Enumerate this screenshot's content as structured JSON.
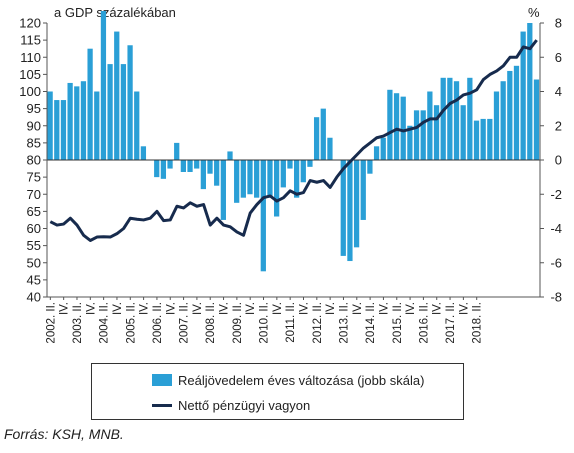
{
  "chart_data": {
    "type": "bar+line",
    "title": "",
    "left_axis_label": "a GDP százalékában",
    "right_axis_label": "%",
    "left_ylim": [
      40,
      120
    ],
    "right_ylim": [
      -8,
      8
    ],
    "left_ticks": [
      "40",
      "45",
      "50",
      "55",
      "60",
      "65",
      "70",
      "75",
      "80",
      "85",
      "90",
      "95",
      "100",
      "105",
      "110",
      "115",
      "120"
    ],
    "right_ticks": [
      "-8",
      "-6",
      "-4",
      "-2",
      "0",
      "2",
      "4",
      "6",
      "8"
    ],
    "x_tick_labels": [
      "2002. II.",
      "IV.",
      "2003. II.",
      "IV.",
      "2004. II.",
      "IV.",
      "2005. II.",
      "IV.",
      "2006. II.",
      "IV.",
      "2007. II.",
      "IV.",
      "2008. II.",
      "IV.",
      "2009. II.",
      "IV.",
      "2010. II.",
      "IV.",
      "2011. II.",
      "IV.",
      "2012. II.",
      "IV.",
      "2013. II.",
      "IV.",
      "2014. II.",
      "IV.",
      "2015. II.",
      "IV.",
      "2016. II.",
      "IV.",
      "2017. II.",
      "IV.",
      "2018. II."
    ],
    "series": [
      {
        "name": "Reáljövedelem éves változása (jobb skála)",
        "type": "bar",
        "axis": "right",
        "color": "#2a9fd6",
        "values": [
          4.0,
          3.5,
          3.5,
          4.5,
          4.3,
          4.6,
          6.5,
          4.0,
          8.7,
          5.6,
          7.5,
          5.6,
          6.7,
          4.0,
          0.8,
          0.0,
          -1.0,
          -1.1,
          -0.5,
          1.0,
          -0.7,
          -0.7,
          -0.5,
          -1.7,
          -0.8,
          -1.5,
          -3.5,
          0.5,
          -2.5,
          -2.2,
          -2.0,
          -2.2,
          -6.5,
          -2.2,
          -3.3,
          -1.6,
          -0.5,
          -2.2,
          -1.3,
          -0.4,
          2.5,
          3.0,
          1.3,
          0.0,
          -5.6,
          -5.9,
          -5.1,
          -3.5,
          -0.8,
          0.8,
          1.3,
          4.1,
          3.9,
          3.7,
          2.0,
          2.9,
          2.9,
          4.0,
          3.2,
          4.8,
          4.8,
          4.6,
          3.2,
          4.8,
          2.3,
          2.4,
          2.4,
          4.0,
          4.6,
          5.2,
          5.5,
          7.5,
          8.0,
          4.7
        ]
      },
      {
        "name": "Nettő pénzügyi vagyon",
        "type": "line",
        "axis": "left",
        "color": "#172b4d",
        "values": [
          62.0,
          61.0,
          61.3,
          63.0,
          61.0,
          58.0,
          56.5,
          57.5,
          57.6,
          57.5,
          58.5,
          60.0,
          63.0,
          62.7,
          62.5,
          63.0,
          65.0,
          62.3,
          62.5,
          66.5,
          66.0,
          67.5,
          66.5,
          67.0,
          61.0,
          63.0,
          61.0,
          60.5,
          59.0,
          58.0,
          64.5,
          67.0,
          69.0,
          69.5,
          68.0,
          69.0,
          71.0,
          70.0,
          70.5,
          74.0,
          73.5,
          74.0,
          72.0,
          75.0,
          77.5,
          79.5,
          81.5,
          83.5,
          85.0,
          86.5,
          87.0,
          88.0,
          89.0,
          88.5,
          89.0,
          89.5,
          91.0,
          92.0,
          92.0,
          94.5,
          96.5,
          97.5,
          99.0,
          99.5,
          100.5,
          103.5,
          105.0,
          106.0,
          107.5,
          110.0,
          110.0,
          113.0,
          112.5,
          115.0
        ]
      }
    ],
    "legend_position": "bottom",
    "grid": false
  },
  "source": "Forrás: KSH, MNB."
}
